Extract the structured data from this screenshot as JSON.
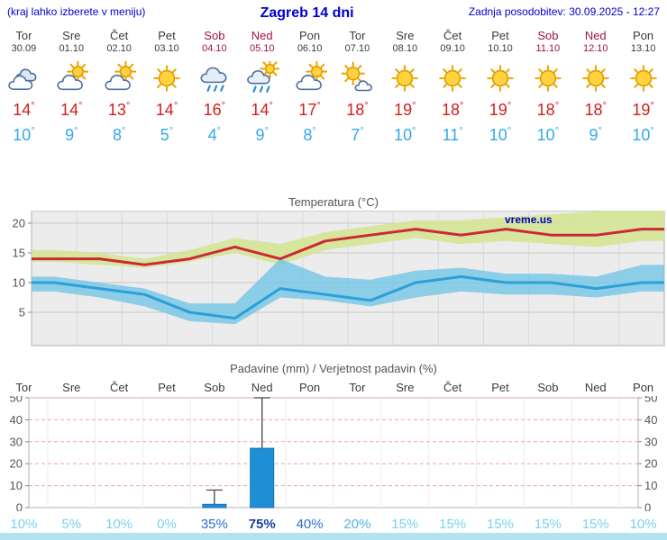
{
  "header": {
    "left_note": "(kraj lahko izberete v meniju)",
    "title": "Zagreb 14 dni",
    "updated": "Zadnja posodobitev: 30.09.2025 - 12:27"
  },
  "units": {
    "degree": "°",
    "percent": "%"
  },
  "colors": {
    "header_text": "#0000cc",
    "weekday_text": "#3c3c3c",
    "weekend_text": "#a01345",
    "high_temp": "#d21e1e",
    "low_temp": "#35a8e8",
    "chart_title": "#555555",
    "footer_strip": "#b5e2f0"
  },
  "days": [
    {
      "name": "Tor",
      "date": "30.09",
      "weekend": false,
      "icon": "cloudy",
      "high": 14,
      "low": 10
    },
    {
      "name": "Sre",
      "date": "01.10",
      "weekend": false,
      "icon": "partly-cloudy",
      "high": 14,
      "low": 9
    },
    {
      "name": "Čet",
      "date": "02.10",
      "weekend": false,
      "icon": "partly-cloudy",
      "high": 13,
      "low": 8
    },
    {
      "name": "Pet",
      "date": "03.10",
      "weekend": false,
      "icon": "sunny",
      "high": 14,
      "low": 5
    },
    {
      "name": "Sob",
      "date": "04.10",
      "weekend": true,
      "icon": "rain",
      "high": 16,
      "low": 4
    },
    {
      "name": "Ned",
      "date": "05.10",
      "weekend": true,
      "icon": "rain-sun",
      "high": 14,
      "low": 9
    },
    {
      "name": "Pon",
      "date": "06.10",
      "weekend": false,
      "icon": "partly-cloudy",
      "high": 17,
      "low": 8
    },
    {
      "name": "Tor",
      "date": "07.10",
      "weekend": false,
      "icon": "mostly-sunny",
      "high": 18,
      "low": 7
    },
    {
      "name": "Sre",
      "date": "08.10",
      "weekend": false,
      "icon": "sunny",
      "high": 19,
      "low": 10
    },
    {
      "name": "Čet",
      "date": "09.10",
      "weekend": false,
      "icon": "sunny",
      "high": 18,
      "low": 11
    },
    {
      "name": "Pet",
      "date": "10.10",
      "weekend": false,
      "icon": "sunny",
      "high": 19,
      "low": 10
    },
    {
      "name": "Sob",
      "date": "11.10",
      "weekend": true,
      "icon": "sunny",
      "high": 18,
      "low": 10
    },
    {
      "name": "Ned",
      "date": "12.10",
      "weekend": true,
      "icon": "sunny",
      "high": 18,
      "low": 9
    },
    {
      "name": "Pon",
      "date": "13.10",
      "weekend": false,
      "icon": "sunny",
      "high": 19,
      "low": 10
    }
  ],
  "chart_data": [
    {
      "type": "line",
      "title": "Temperatura (°C)",
      "watermark": "vreme.us",
      "x": [
        "Tor 30.09",
        "Sre 01.10",
        "Čet 02.10",
        "Pet 03.10",
        "Sob 04.10",
        "Ned 05.10",
        "Pon 06.10",
        "Tor 07.10",
        "Sre 08.10",
        "Čet 09.10",
        "Pet 10.10",
        "Sob 11.10",
        "Ned 12.10",
        "Pon 13.10"
      ],
      "ylim": [
        -1,
        22
      ],
      "yticks": [
        5,
        10,
        15,
        20
      ],
      "grid": true,
      "series": [
        {
          "name": "temp-max-line",
          "color": "#cc2936",
          "values": [
            14,
            14,
            13,
            14,
            16,
            14,
            17,
            18,
            19,
            18,
            19,
            18,
            18,
            19
          ]
        },
        {
          "name": "temp-min-line",
          "color": "#2b9fd9",
          "values": [
            10,
            9,
            8,
            5,
            4,
            9,
            8,
            7,
            10,
            11,
            10,
            10,
            9,
            10
          ]
        }
      ],
      "bands": [
        {
          "name": "temp-max-band",
          "color": "#d4e595",
          "opacity": 0.9,
          "upper": [
            15.5,
            15,
            14,
            15.5,
            17.5,
            16.5,
            18.5,
            19.5,
            20.5,
            20.5,
            21,
            21.5,
            22,
            23
          ],
          "lower": [
            13.5,
            13,
            12.5,
            13.5,
            15,
            13,
            15.5,
            16.5,
            17.5,
            16.5,
            17,
            16.5,
            16,
            17
          ]
        },
        {
          "name": "temp-min-band",
          "color": "#74c6e6",
          "opacity": 0.8,
          "upper": [
            11,
            10,
            9,
            6.5,
            6.5,
            14,
            11,
            10.5,
            12,
            12.5,
            11.5,
            11.5,
            11,
            13
          ],
          "lower": [
            8.5,
            7.5,
            6,
            3.5,
            3,
            7.5,
            7,
            6,
            7.5,
            8.5,
            8,
            8,
            7.5,
            8.5
          ]
        }
      ]
    },
    {
      "type": "bar",
      "title": "Padavine (mm) / Verjetnost padavin (%)",
      "categories": [
        "Tor",
        "Sre",
        "Čet",
        "Pet",
        "Sob",
        "Ned",
        "Pon",
        "Tor",
        "Sre",
        "Čet",
        "Pet",
        "Sob",
        "Ned",
        "Pon"
      ],
      "values": [
        0,
        0,
        0,
        0,
        1.5,
        27,
        0,
        0,
        0,
        0,
        0,
        0,
        0,
        0
      ],
      "whisker_max": [
        null,
        null,
        null,
        null,
        8,
        52,
        null,
        null,
        null,
        null,
        null,
        null,
        null,
        null
      ],
      "probabilities_pct": [
        10,
        5,
        10,
        0,
        35,
        75,
        40,
        20,
        15,
        15,
        15,
        15,
        15,
        10
      ],
      "ylim": [
        0,
        52
      ],
      "yticks": [
        0,
        10,
        20,
        30,
        40,
        50
      ],
      "bar_color": "#1e8fd5",
      "prob_colors": [
        {
          "min_pct": 75,
          "color": "#1c3f9e",
          "bold": true
        },
        {
          "min_pct": 35,
          "color": "#2f6fc8",
          "bold": false
        },
        {
          "min_pct": 20,
          "color": "#58b0dc",
          "bold": false
        },
        {
          "min_pct": 0,
          "color": "#7ad2e8",
          "bold": false
        }
      ]
    }
  ]
}
